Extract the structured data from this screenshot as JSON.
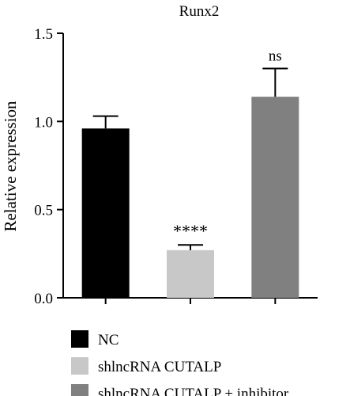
{
  "chart_data": {
    "type": "bar",
    "title": "Runx2",
    "ylabel": "Relative expression",
    "xlabel": "",
    "ylim": [
      0,
      1.5
    ],
    "yticks": [
      "0.0",
      "0.5",
      "1.0",
      "1.5"
    ],
    "categories": [
      "NC",
      "shlncRNA CUTALP",
      "shlncRNA CUTALP + inhibitor"
    ],
    "values": [
      0.96,
      0.27,
      1.14
    ],
    "errors": [
      0.07,
      0.03,
      0.16
    ],
    "annotations": [
      "",
      "****",
      "ns"
    ],
    "colors": [
      "#000000",
      "#c8c8c8",
      "#808080"
    ],
    "legend": {
      "position": "bottom",
      "entries": [
        "NC",
        "shlncRNA CUTALP",
        "shlncRNA CUTALP + inhibitor"
      ]
    },
    "grid": false
  }
}
